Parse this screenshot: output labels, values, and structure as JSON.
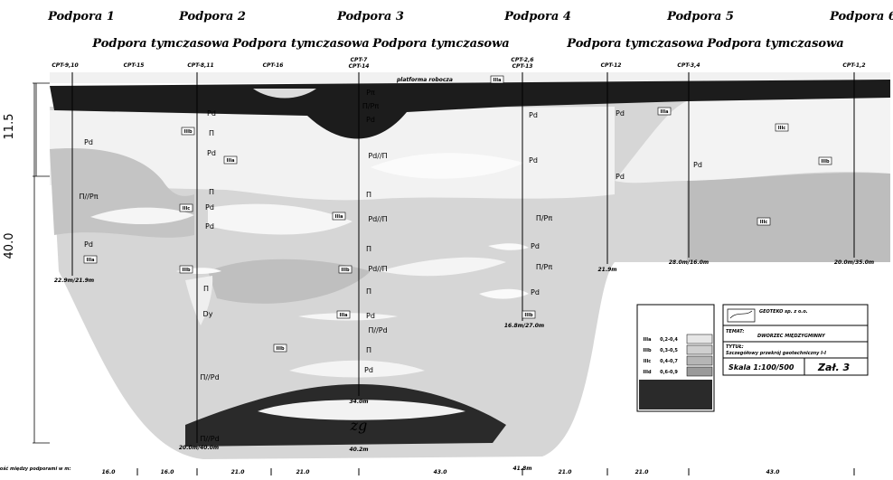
{
  "supports": [
    "Podpora 1",
    "Podpora 2",
    "Podpora 3",
    "Podpora 4",
    "Podpora 5",
    "Podpora 6"
  ],
  "temporary_supports": [
    "Podpora tymczasowa",
    "Podpora tymczasowa",
    "Podpora tymczasowa",
    "Podpora tymczasowa",
    "Podpora tymczasowa"
  ],
  "boreholes": [
    "CPT-9,10",
    "CPT-15",
    "CPT-8,11",
    "CPT-16",
    "CPT-7",
    "CPT-14",
    "CPT-2,6",
    "CPT-13",
    "CPT-12",
    "CPT-3,4",
    "CPT-1,2"
  ],
  "platform": "platforma robocza",
  "depths": [
    "22.9m/21.9m",
    "20.0m/40.0m",
    "34.0m",
    "40.2m",
    "16.8m/27.0m",
    "21.9m",
    "28.0m/16.0m",
    "20.0m/35.0m",
    "41.8m"
  ],
  "soil_labels": [
    "Pd",
    "Π//Pπ",
    "Pd",
    "Pd",
    "Π",
    "Pd",
    "Π",
    "Pd",
    "Pd",
    "Π",
    "Dy",
    "Π//Pd",
    "Π//Pd",
    "Pπ",
    "Π/Pπ",
    "Pd",
    "Pd//Π",
    "Π",
    "Pd//Π",
    "Π",
    "Pd//Π",
    "Π",
    "Pd",
    "Π//Pd",
    "Π",
    "Pd",
    "Pd",
    "Pd",
    "Π/Pπ",
    "Pd",
    "Π/Pπ",
    "Pd",
    "Pd",
    "Pd",
    "Pd"
  ],
  "soil_codes": [
    "IIIa",
    "IIIb",
    "IIIa",
    "IIIc",
    "IIIb",
    "IIIa",
    "IIIb",
    "IIIa",
    "IIIb",
    "IIIa",
    "IIIc",
    "IIIb",
    "IIIc",
    "IIIb",
    "IIIa"
  ],
  "left_dimensions": [
    "11.5",
    "40.0"
  ],
  "ground_label": "zg",
  "distances_caption": "Odległość między podporami w m:",
  "distances": [
    "16.0",
    "16.0",
    "21.0",
    "21.0",
    "43.0",
    "21.0",
    "21.0",
    "43.0"
  ],
  "legend": {
    "rows": [
      [
        "IIIa",
        "0,2-0,4"
      ],
      [
        "IIIb",
        "0,3-0,5"
      ],
      [
        "IIIc",
        "0,4-0,7"
      ],
      [
        "IIId",
        "0,6-0,9"
      ]
    ]
  },
  "title_block": {
    "company": "GEOTEKO sp. z o.o.",
    "topic_label": "TEMAT:",
    "topic": "DWORZEC MIĘDZYGMINNY",
    "title_label": "TYTUŁ:",
    "title": "Szczegółowy przekrój geotechniczny I-I",
    "scale": "Skala 1:100/500",
    "attachment": "Zał. 3"
  }
}
